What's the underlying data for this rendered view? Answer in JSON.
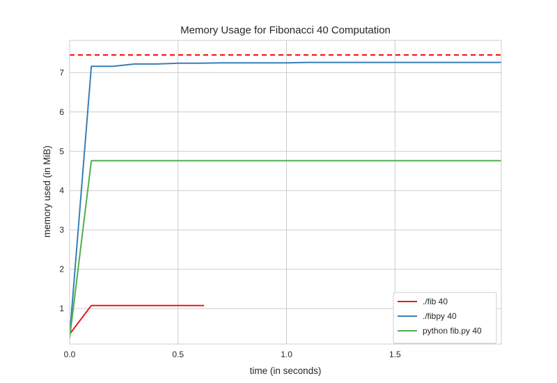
{
  "chart_data": {
    "type": "line",
    "title": "Memory Usage for Fibonacci 40 Computation",
    "xlabel": "time (in seconds)",
    "ylabel": "memory used (in MiB)",
    "xlim": [
      0.0,
      1.99
    ],
    "ylim": [
      0.1,
      7.82
    ],
    "xticks": [
      0.0,
      0.5,
      1.0,
      1.5
    ],
    "xtick_labels": [
      "0.0",
      "0.5",
      "1.0",
      "1.5"
    ],
    "yticks": [
      1,
      2,
      3,
      4,
      5,
      6,
      7
    ],
    "ytick_labels": [
      "1",
      "2",
      "3",
      "4",
      "5",
      "6",
      "7"
    ],
    "grid": true,
    "legend_position": "lower-right",
    "series": [
      {
        "name": "./fib 40",
        "color": "#e41a1c",
        "x": [
          0.0,
          0.1,
          0.2,
          0.3,
          0.4,
          0.5,
          0.6,
          0.62
        ],
        "y": [
          0.35,
          1.08,
          1.08,
          1.08,
          1.08,
          1.08,
          1.08,
          1.08
        ]
      },
      {
        "name": "./fibpy 40",
        "color": "#377eb8",
        "x": [
          0.0,
          0.1,
          0.2,
          0.3,
          0.4,
          0.5,
          0.6,
          0.7,
          0.8,
          0.9,
          1.0,
          1.1,
          1.2,
          1.3,
          1.4,
          1.5,
          1.6,
          1.7,
          1.8,
          1.99
        ],
        "y": [
          0.3,
          7.16,
          7.16,
          7.22,
          7.22,
          7.24,
          7.24,
          7.25,
          7.25,
          7.25,
          7.25,
          7.26,
          7.26,
          7.26,
          7.26,
          7.26,
          7.26,
          7.26,
          7.26,
          7.26
        ]
      },
      {
        "name": "python fib.py 40",
        "color": "#4daf4a",
        "x": [
          0.0,
          0.1,
          0.5,
          1.0,
          1.5,
          1.99
        ],
        "y": [
          0.25,
          4.76,
          4.76,
          4.76,
          4.76,
          4.76
        ]
      }
    ],
    "reference_line": {
      "y": 7.45,
      "color": "#ff0000",
      "style": "dashed"
    }
  }
}
